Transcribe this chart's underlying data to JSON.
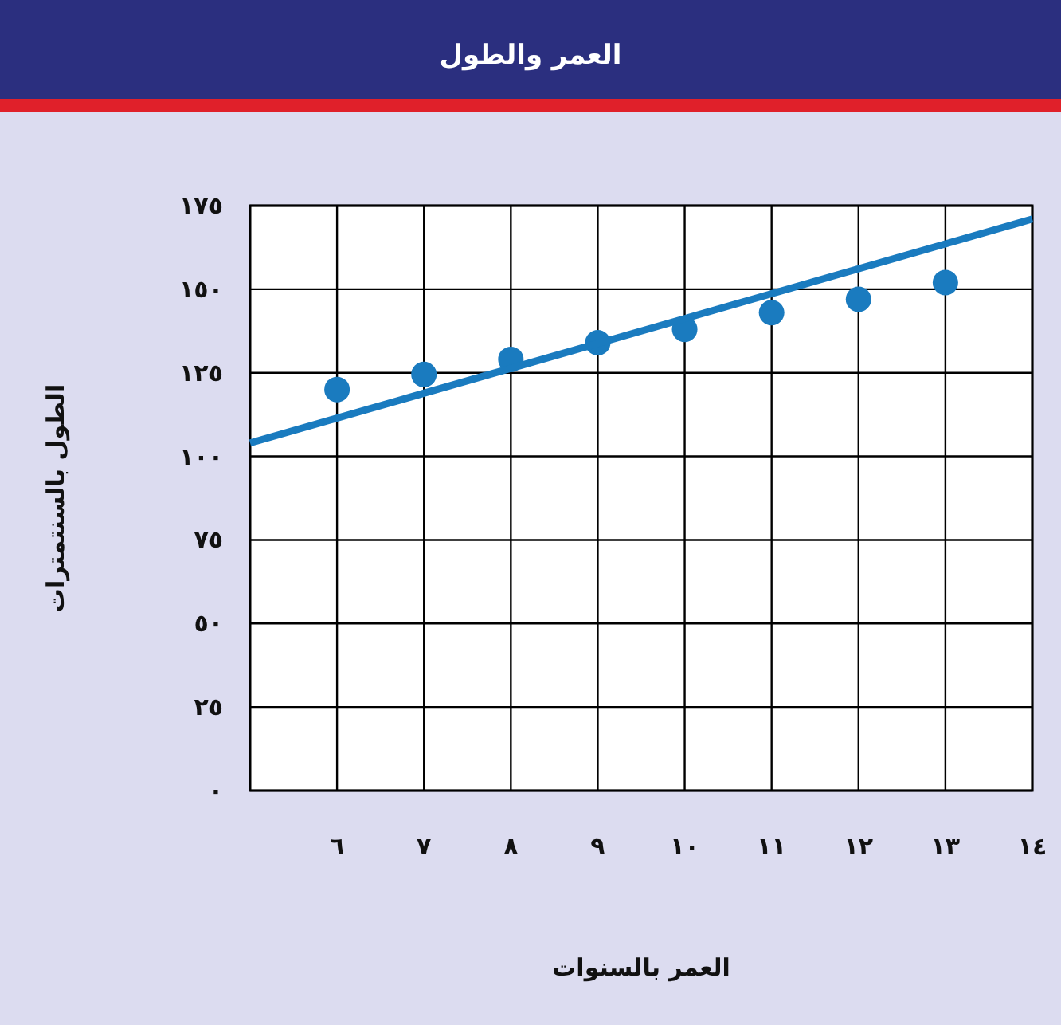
{
  "chart_data": {
    "type": "scatter",
    "title": "العمر والطول",
    "xlabel": "العمر بالسنوات",
    "ylabel": "الطول بالسنتمترات",
    "series": [
      {
        "color": "#1a7bbf",
        "marker": "circle",
        "x": [
          6,
          7,
          8,
          9,
          10,
          11,
          12,
          13
        ],
        "values": [
          120,
          124.5,
          129,
          134,
          138,
          143,
          147,
          152
        ]
      },
      {
        "type": "line",
        "color": "#1a7bbf",
        "x": [
          5,
          14
        ],
        "values": [
          104,
          171
        ]
      }
    ],
    "xlim": [
      5,
      14
    ],
    "ylim": [
      0,
      175
    ],
    "xticks": [
      {
        "value": 6,
        "label": "٦"
      },
      {
        "value": 7,
        "label": "٧"
      },
      {
        "value": 8,
        "label": "٨"
      },
      {
        "value": 9,
        "label": "٩"
      },
      {
        "value": 10,
        "label": "١٠"
      },
      {
        "value": 11,
        "label": "١١"
      },
      {
        "value": 12,
        "label": "١٢"
      },
      {
        "value": 13,
        "label": "١٣"
      },
      {
        "value": 14,
        "label": "١٤"
      }
    ],
    "yticks": [
      {
        "value": 0,
        "label": "٠"
      },
      {
        "value": 25,
        "label": "٢٥"
      },
      {
        "value": 50,
        "label": "٥٠"
      },
      {
        "value": 75,
        "label": "٧٥"
      },
      {
        "value": 100,
        "label": "١٠٠"
      },
      {
        "value": 125,
        "label": "١٢٥"
      },
      {
        "value": 150,
        "label": "١٥٠"
      },
      {
        "value": 175,
        "label": "١٧٥"
      }
    ],
    "grid": true
  }
}
